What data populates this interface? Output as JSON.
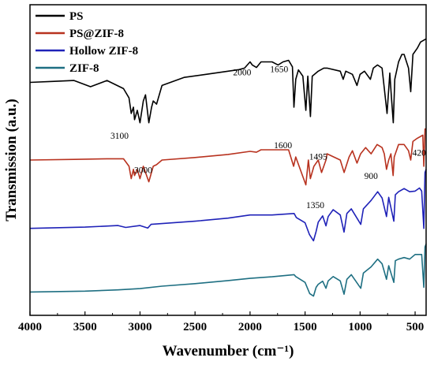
{
  "chart_data": {
    "type": "line",
    "title": "",
    "xlabel": "Wavenumber (cm⁻¹)",
    "ylabel": "Transmission (a.u.)",
    "xlim": [
      4000,
      400
    ],
    "x_reversed": true,
    "ylim": [
      0,
      100
    ],
    "x_ticks": [
      4000,
      3500,
      3000,
      2500,
      2000,
      1500,
      1000,
      500
    ],
    "grid": false,
    "legend_position": "top-left",
    "series": [
      {
        "name": "PS",
        "color": "#000000",
        "points": [
          [
            4000,
            75
          ],
          [
            3800,
            75.3
          ],
          [
            3600,
            75.6
          ],
          [
            3450,
            73.6
          ],
          [
            3300,
            75.6
          ],
          [
            3150,
            73
          ],
          [
            3100,
            70
          ],
          [
            3080,
            65
          ],
          [
            3060,
            67
          ],
          [
            3050,
            63
          ],
          [
            3025,
            66
          ],
          [
            3000,
            62
          ],
          [
            2970,
            69
          ],
          [
            2950,
            71
          ],
          [
            2920,
            62
          ],
          [
            2895,
            67
          ],
          [
            2880,
            69
          ],
          [
            2850,
            68
          ],
          [
            2800,
            74
          ],
          [
            2600,
            76.6
          ],
          [
            2400,
            77.6
          ],
          [
            2200,
            78.6
          ],
          [
            2100,
            79.1
          ],
          [
            2050,
            79.6
          ],
          [
            2000,
            81.6
          ],
          [
            1980,
            80.6
          ],
          [
            1942,
            79.8
          ],
          [
            1900,
            81.6
          ],
          [
            1800,
            81.6
          ],
          [
            1745,
            80.6
          ],
          [
            1700,
            81.6
          ],
          [
            1650,
            82.1
          ],
          [
            1615,
            80
          ],
          [
            1601,
            67
          ],
          [
            1585,
            76
          ],
          [
            1560,
            79
          ],
          [
            1520,
            77
          ],
          [
            1493,
            66
          ],
          [
            1475,
            77
          ],
          [
            1451,
            64
          ],
          [
            1435,
            77
          ],
          [
            1380,
            78.6
          ],
          [
            1330,
            79.6
          ],
          [
            1300,
            79.6
          ],
          [
            1180,
            78.6
          ],
          [
            1154,
            76
          ],
          [
            1130,
            78.6
          ],
          [
            1070,
            77.6
          ],
          [
            1028,
            74
          ],
          [
            1000,
            77.6
          ],
          [
            960,
            78.6
          ],
          [
            906,
            76
          ],
          [
            880,
            79.6
          ],
          [
            842,
            80.6
          ],
          [
            800,
            79.6
          ],
          [
            755,
            65
          ],
          [
            730,
            78
          ],
          [
            715,
            70
          ],
          [
            698,
            62
          ],
          [
            685,
            76
          ],
          [
            650,
            81.6
          ],
          [
            620,
            84
          ],
          [
            600,
            84
          ],
          [
            560,
            79.6
          ],
          [
            540,
            72
          ],
          [
            520,
            84
          ],
          [
            480,
            86
          ],
          [
            450,
            88
          ],
          [
            400,
            89
          ]
        ]
      },
      {
        "name": "PS@ZIF-8",
        "color": "#b8321f",
        "points": [
          [
            4000,
            50
          ],
          [
            3600,
            50.2
          ],
          [
            3300,
            50.4
          ],
          [
            3150,
            50.4
          ],
          [
            3100,
            48
          ],
          [
            3080,
            44
          ],
          [
            3060,
            47
          ],
          [
            3050,
            45
          ],
          [
            3025,
            47
          ],
          [
            3000,
            44
          ],
          [
            2970,
            48
          ],
          [
            2920,
            43
          ],
          [
            2880,
            48
          ],
          [
            2850,
            48.5
          ],
          [
            2800,
            50
          ],
          [
            2500,
            50.8
          ],
          [
            2200,
            51.8
          ],
          [
            2000,
            52.8
          ],
          [
            1942,
            52.5
          ],
          [
            1900,
            53.3
          ],
          [
            1800,
            53.3
          ],
          [
            1650,
            53.3
          ],
          [
            1604,
            48
          ],
          [
            1585,
            51
          ],
          [
            1493,
            42
          ],
          [
            1470,
            50
          ],
          [
            1452,
            44
          ],
          [
            1420,
            48
          ],
          [
            1380,
            50
          ],
          [
            1350,
            46
          ],
          [
            1310,
            50
          ],
          [
            1300,
            52
          ],
          [
            1180,
            50
          ],
          [
            1145,
            46
          ],
          [
            1100,
            51
          ],
          [
            1070,
            53
          ],
          [
            1028,
            49
          ],
          [
            995,
            52
          ],
          [
            950,
            54
          ],
          [
            900,
            52
          ],
          [
            845,
            55
          ],
          [
            800,
            54
          ],
          [
            780,
            52
          ],
          [
            760,
            47
          ],
          [
            740,
            50
          ],
          [
            720,
            52
          ],
          [
            700,
            45
          ],
          [
            690,
            51
          ],
          [
            650,
            55
          ],
          [
            600,
            55
          ],
          [
            560,
            53
          ],
          [
            540,
            50
          ],
          [
            520,
            56
          ],
          [
            480,
            57
          ],
          [
            430,
            58
          ],
          [
            421,
            48
          ],
          [
            410,
            60
          ],
          [
            400,
            60
          ]
        ]
      },
      {
        "name": "Hollow ZIF-8",
        "color": "#1f22b8",
        "points": [
          [
            4000,
            28
          ],
          [
            3500,
            28.4
          ],
          [
            3200,
            28.9
          ],
          [
            3130,
            28.3
          ],
          [
            3000,
            28.9
          ],
          [
            2930,
            28.1
          ],
          [
            2900,
            29.3
          ],
          [
            2500,
            30.3
          ],
          [
            2200,
            31.3
          ],
          [
            2000,
            32.3
          ],
          [
            1800,
            32.3
          ],
          [
            1600,
            32.8
          ],
          [
            1580,
            31.5
          ],
          [
            1500,
            29.8
          ],
          [
            1460,
            26
          ],
          [
            1423,
            24
          ],
          [
            1400,
            27
          ],
          [
            1380,
            30
          ],
          [
            1340,
            32
          ],
          [
            1310,
            28.8
          ],
          [
            1290,
            31.8
          ],
          [
            1245,
            34
          ],
          [
            1180,
            32.3
          ],
          [
            1146,
            26.8
          ],
          [
            1120,
            32.8
          ],
          [
            1080,
            34.3
          ],
          [
            994,
            29.3
          ],
          [
            970,
            34.3
          ],
          [
            900,
            37
          ],
          [
            840,
            39.8
          ],
          [
            800,
            37.8
          ],
          [
            760,
            31.8
          ],
          [
            740,
            38
          ],
          [
            693,
            30.3
          ],
          [
            680,
            38.8
          ],
          [
            650,
            39.8
          ],
          [
            600,
            40.8
          ],
          [
            550,
            39.8
          ],
          [
            500,
            40
          ],
          [
            460,
            41
          ],
          [
            440,
            40
          ],
          [
            421,
            28
          ],
          [
            410,
            46
          ],
          [
            400,
            47
          ]
        ]
      },
      {
        "name": "ZIF-8",
        "color": "#1e6f82",
        "points": [
          [
            4000,
            7.5
          ],
          [
            3500,
            7.8
          ],
          [
            3200,
            8.2
          ],
          [
            3000,
            8.6
          ],
          [
            2800,
            9.4
          ],
          [
            2500,
            10.2
          ],
          [
            2200,
            11.2
          ],
          [
            2000,
            11.9
          ],
          [
            1800,
            12.4
          ],
          [
            1600,
            13.1
          ],
          [
            1585,
            12.5
          ],
          [
            1500,
            10.6
          ],
          [
            1458,
            7
          ],
          [
            1423,
            6.2
          ],
          [
            1400,
            9
          ],
          [
            1380,
            10
          ],
          [
            1340,
            11
          ],
          [
            1310,
            8.7
          ],
          [
            1290,
            11.1
          ],
          [
            1245,
            12.5
          ],
          [
            1180,
            11.1
          ],
          [
            1146,
            6.8
          ],
          [
            1120,
            11.6
          ],
          [
            1080,
            13.1
          ],
          [
            994,
            8.7
          ],
          [
            970,
            13.6
          ],
          [
            900,
            15.6
          ],
          [
            840,
            18.1
          ],
          [
            800,
            16.6
          ],
          [
            760,
            11.6
          ],
          [
            740,
            16
          ],
          [
            693,
            10.6
          ],
          [
            680,
            17.6
          ],
          [
            650,
            18.1
          ],
          [
            600,
            18.6
          ],
          [
            550,
            18.1
          ],
          [
            500,
            19.6
          ],
          [
            440,
            19.6
          ],
          [
            421,
            9
          ],
          [
            410,
            22
          ],
          [
            400,
            23
          ]
        ]
      }
    ],
    "annotations": [
      {
        "text": "3100",
        "x": 3100,
        "series": "PS"
      },
      {
        "text": "3000",
        "x": 3000,
        "series": "PS"
      },
      {
        "text": "2000",
        "x": 2000,
        "series": "PS"
      },
      {
        "text": "1650",
        "x": 1650,
        "series": "PS"
      },
      {
        "text": "1600",
        "x": 1600,
        "series": "PS"
      },
      {
        "text": "1495",
        "x": 1495,
        "series": "PS"
      },
      {
        "text": "1350",
        "x": 1350,
        "series": "PS@ZIF-8"
      },
      {
        "text": "900",
        "x": 900,
        "series": "PS@ZIF-8"
      },
      {
        "text": "420",
        "x": 420,
        "series": "PS@ZIF-8"
      }
    ]
  }
}
